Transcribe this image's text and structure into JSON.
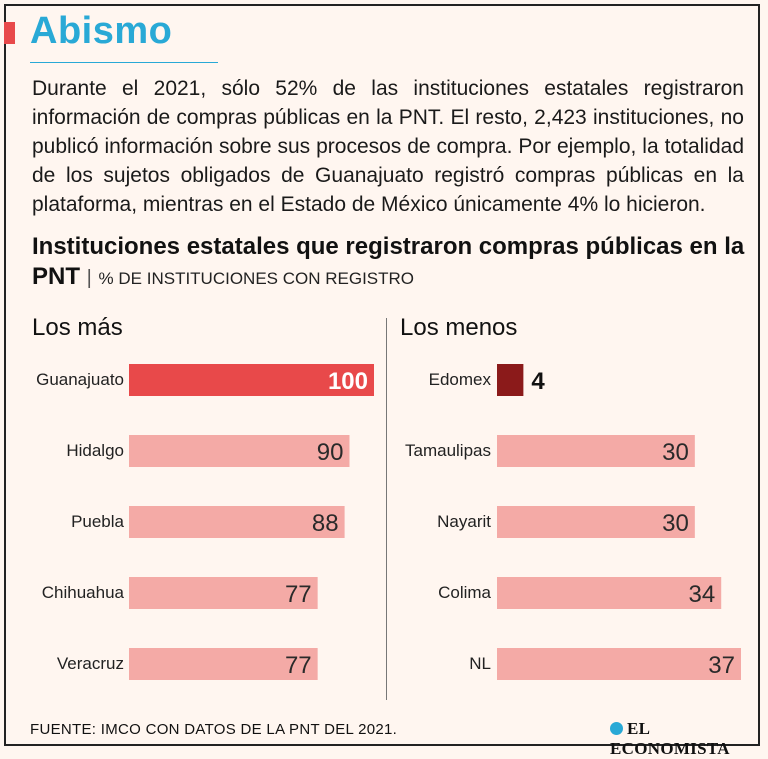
{
  "header": {
    "title": "Abismo",
    "intro": "Durante el 2021, sólo 52% de las instituciones estatales registraron información de compras públicas en la PNT. El resto, 2,423 instituciones, no publicó información sobre sus procesos de compra. Por ejemplo, la totalidad de los sujetos obligados de Guanajuato registró compras públicas en la plataforma, mientras en el Estado de México únicamente 4% lo hicieron."
  },
  "chart_heading": {
    "title": "Instituciones estatales que registraron compras públicas en la PNT",
    "subtitle": "% DE INSTITUCIONES CON REGISTRO"
  },
  "colors": {
    "title_blue": "#29a9d6",
    "highlight_red": "#e8494a",
    "highlight_dark": "#8b1a1a",
    "bar_pink": "#f4aaa6",
    "background": "#fff6f0"
  },
  "chart_data": [
    {
      "type": "bar",
      "orientation": "horizontal",
      "group_label": "Los más",
      "categories": [
        "Guanajuato",
        "Hidalgo",
        "Puebla",
        "Chihuahua",
        "Veracruz"
      ],
      "values": [
        100,
        90,
        88,
        77,
        77
      ],
      "value_labels": [
        "100",
        "90",
        "88",
        "77",
        "77"
      ],
      "highlight_index": 0,
      "xlim": [
        0,
        100
      ]
    },
    {
      "type": "bar",
      "orientation": "horizontal",
      "group_label": "Los menos",
      "categories": [
        "Edomex",
        "Tamaulipas",
        "Nayarit",
        "Colima",
        "NL"
      ],
      "values": [
        4,
        30,
        30,
        34,
        37
      ],
      "value_labels": [
        "4",
        "30",
        "30",
        "34",
        "37"
      ],
      "highlight_index": 0,
      "xlim": [
        0,
        37
      ]
    }
  ],
  "footer": {
    "source": "FUENTE: IMCO CON DATOS DE LA PNT DEL 2021.",
    "brand": "EL ECONOMISTA"
  }
}
